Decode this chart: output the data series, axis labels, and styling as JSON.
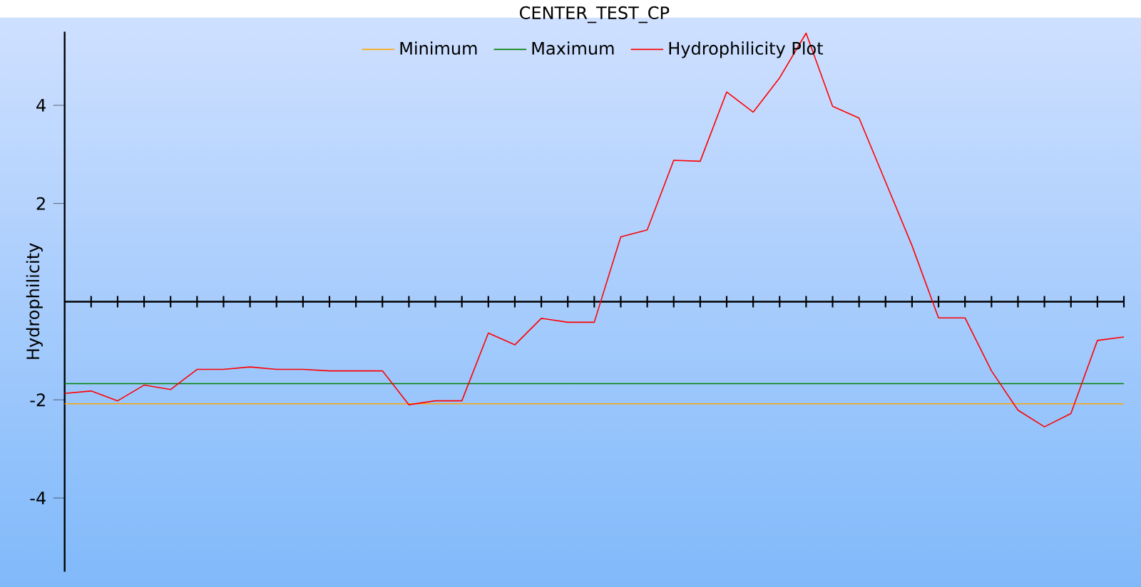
{
  "chart_data": {
    "type": "line",
    "title": "CENTER_TEST_CP",
    "ylabel": "Hydrophilicity",
    "categories": [
      null,
      null,
      null,
      null,
      null,
      null,
      null,
      null,
      null,
      null,
      null,
      null,
      null,
      null,
      null,
      null,
      null,
      null,
      null,
      null,
      null,
      null,
      null,
      null,
      null,
      null,
      null,
      null,
      null,
      null,
      null,
      null,
      null,
      null,
      null,
      null,
      null,
      null,
      null,
      null,
      null
    ],
    "series": [
      {
        "name": "Minimum",
        "color": "#ffa500",
        "values": [
          -2.08,
          -2.08,
          -2.08,
          -2.08,
          -2.08,
          -2.08,
          -2.08,
          -2.08,
          -2.08,
          -2.08,
          -2.08,
          -2.08,
          -2.08,
          -2.08,
          -2.08,
          -2.08,
          -2.08,
          -2.08,
          -2.08,
          -2.08,
          -2.08,
          -2.08,
          -2.08,
          -2.08,
          -2.08,
          -2.08,
          -2.08,
          -2.08,
          -2.08,
          -2.08,
          -2.08,
          -2.08,
          -2.08,
          -2.08,
          -2.08,
          -2.08,
          -2.08,
          -2.08,
          -2.08,
          -2.08,
          -2.08
        ]
      },
      {
        "name": "Maximum",
        "color": "#008000",
        "values": [
          -1.67,
          -1.67,
          -1.67,
          -1.67,
          -1.67,
          -1.67,
          -1.67,
          -1.67,
          -1.67,
          -1.67,
          -1.67,
          -1.67,
          -1.67,
          -1.67,
          -1.67,
          -1.67,
          -1.67,
          -1.67,
          -1.67,
          -1.67,
          -1.67,
          -1.67,
          -1.67,
          -1.67,
          -1.67,
          -1.67,
          -1.67,
          -1.67,
          -1.67,
          -1.67,
          -1.67,
          -1.67,
          -1.67,
          -1.67,
          -1.67,
          -1.67,
          -1.67,
          -1.67,
          -1.67,
          -1.67,
          -1.67
        ]
      },
      {
        "name": "Hydrophilicity Plot",
        "color": "#ff0000",
        "values": [
          -1.87,
          -1.82,
          -2.02,
          -1.7,
          -1.79,
          -1.38,
          -1.38,
          -1.33,
          -1.38,
          -1.38,
          -1.41,
          -1.41,
          -1.41,
          -2.1,
          -2.02,
          -2.02,
          -0.64,
          -0.88,
          -0.34,
          -0.42,
          -0.42,
          1.32,
          1.46,
          2.88,
          2.86,
          4.27,
          3.86,
          4.56,
          5.47,
          3.98,
          3.74,
          2.44,
          1.14,
          -0.33,
          -0.33,
          -1.41,
          -2.21,
          -2.55,
          -2.28,
          -0.79,
          -0.72
        ]
      }
    ],
    "ylim": [
      -5.5,
      5.5
    ],
    "yticks": [
      -4,
      -2,
      2,
      4
    ],
    "legend": "top"
  }
}
